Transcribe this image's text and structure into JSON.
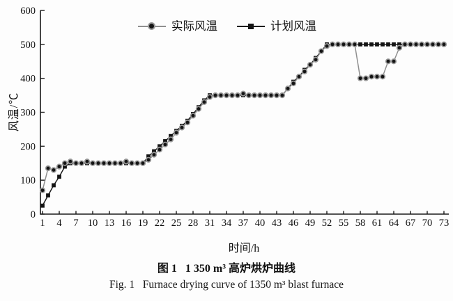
{
  "figure": {
    "caption_zh": "图 1   1 350 m³ 高炉烘炉曲线",
    "caption_en": "Fig. 1   Furnace drying curve of 1350 m³ blast furnace"
  },
  "chart_data": {
    "type": "line",
    "title": "",
    "xlabel": "时间/h",
    "ylabel": "风温/℃",
    "xlim": [
      1,
      73
    ],
    "ylim": [
      0,
      600
    ],
    "x_ticks": [
      1,
      4,
      7,
      10,
      13,
      16,
      19,
      22,
      25,
      28,
      31,
      34,
      37,
      40,
      43,
      46,
      49,
      52,
      55,
      58,
      61,
      64,
      67,
      70,
      73
    ],
    "y_ticks": [
      0,
      100,
      200,
      300,
      400,
      500,
      600
    ],
    "grid": false,
    "legend_position": "top-center",
    "colors": {
      "axis": "#1a1a1a",
      "text": "#111111",
      "background": "#fdfdfd"
    },
    "x": [
      1,
      2,
      3,
      4,
      5,
      6,
      7,
      8,
      9,
      10,
      11,
      12,
      13,
      14,
      15,
      16,
      17,
      18,
      19,
      20,
      21,
      22,
      23,
      24,
      25,
      26,
      27,
      28,
      29,
      30,
      31,
      32,
      33,
      34,
      35,
      36,
      37,
      38,
      39,
      40,
      41,
      42,
      43,
      44,
      45,
      46,
      47,
      48,
      49,
      50,
      51,
      52,
      53,
      54,
      55,
      56,
      57,
      58,
      59,
      60,
      61,
      62,
      63,
      64,
      65,
      66,
      67,
      68,
      69,
      70,
      71,
      72,
      73
    ],
    "series": [
      {
        "name": "实际风温",
        "marker": "circle",
        "line_color": "#8f8f8f",
        "marker_fill": "#141414",
        "marker_stroke": "#9a9a9a",
        "values": [
          70,
          135,
          130,
          140,
          150,
          155,
          150,
          150,
          155,
          150,
          150,
          150,
          150,
          150,
          150,
          155,
          150,
          150,
          150,
          160,
          175,
          190,
          205,
          220,
          240,
          255,
          270,
          290,
          310,
          330,
          345,
          350,
          350,
          350,
          350,
          350,
          355,
          350,
          350,
          350,
          350,
          350,
          350,
          350,
          370,
          385,
          405,
          420,
          440,
          455,
          480,
          495,
          500,
          500,
          500,
          500,
          500,
          400,
          400,
          405,
          405,
          405,
          450,
          450,
          490,
          500,
          500,
          500,
          500,
          500,
          500,
          500,
          500
        ]
      },
      {
        "name": "计划风温",
        "marker": "square",
        "line_color": "#1c1c1c",
        "marker_fill": "#141414",
        "marker_stroke": "#1c1c1c",
        "values": [
          25,
          55,
          85,
          110,
          140,
          150,
          150,
          150,
          150,
          150,
          150,
          150,
          150,
          150,
          150,
          150,
          150,
          150,
          150,
          170,
          185,
          200,
          215,
          230,
          245,
          260,
          275,
          295,
          315,
          335,
          350,
          350,
          350,
          350,
          350,
          350,
          350,
          350,
          350,
          350,
          350,
          350,
          350,
          350,
          370,
          390,
          405,
          425,
          440,
          460,
          480,
          500,
          500,
          500,
          500,
          500,
          500,
          500,
          500,
          500,
          500,
          500,
          500,
          500,
          500,
          500,
          500,
          500,
          500,
          500,
          500,
          500,
          500
        ]
      }
    ]
  }
}
